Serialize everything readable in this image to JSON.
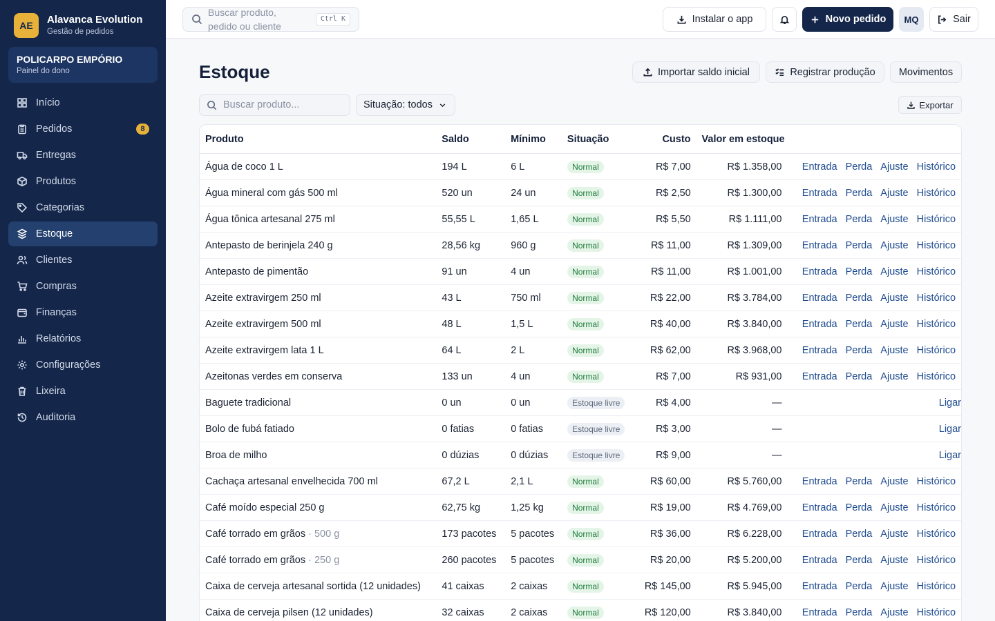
{
  "sidebar": {
    "brand": {
      "logo": "AE",
      "title": "Alavanca Evolution",
      "subtitle": "Gestão de pedidos"
    },
    "org": {
      "name": "POLICARPO EMPÓRIO",
      "role": "Painel do dono"
    },
    "items": [
      {
        "label": "Início",
        "icon": "grid-icon"
      },
      {
        "label": "Pedidos",
        "icon": "clipboard-icon",
        "badge": "8"
      },
      {
        "label": "Entregas",
        "icon": "truck-icon"
      },
      {
        "label": "Produtos",
        "icon": "box-icon"
      },
      {
        "label": "Categorias",
        "icon": "tag-icon"
      },
      {
        "label": "Estoque",
        "icon": "stack-icon",
        "active": true
      },
      {
        "label": "Clientes",
        "icon": "users-icon"
      },
      {
        "label": "Compras",
        "icon": "cart-icon"
      },
      {
        "label": "Finanças",
        "icon": "wallet-icon"
      },
      {
        "label": "Relatórios",
        "icon": "bar-chart-icon"
      },
      {
        "label": "Configurações",
        "icon": "gear-icon"
      },
      {
        "label": "Lixeira",
        "icon": "trash-icon"
      },
      {
        "label": "Auditoria",
        "icon": "history-icon"
      }
    ]
  },
  "topbar": {
    "search_placeholder": "Buscar produto, pedido ou cliente",
    "search_shortcut": "Ctrl K",
    "install_label": "Instalar o app",
    "new_order_label": "Novo pedido",
    "avatar": "MQ",
    "logout_label": "Sair"
  },
  "page": {
    "title": "Estoque",
    "actions": {
      "import": "Importar saldo inicial",
      "production": "Registrar produção",
      "movements": "Movimentos"
    },
    "filter_placeholder": "Buscar produto...",
    "filter_status": "Situação: todos",
    "export_label": "Exportar"
  },
  "table": {
    "headers": {
      "product": "Produto",
      "balance": "Saldo",
      "minimum": "Mínimo",
      "status": "Situação",
      "cost": "Custo",
      "value": "Valor em estoque"
    },
    "action_labels": {
      "entry": "Entrada",
      "loss": "Perda",
      "adjust": "Ajuste",
      "history": "Histórico",
      "link": "Ligar"
    },
    "rows": [
      {
        "product": "Água de coco 1 L",
        "variant": "",
        "balance": "194 L",
        "minimum": "6 L",
        "status": "Normal",
        "cost": "R$ 7,00",
        "value": "R$ 1.358,00"
      },
      {
        "product": "Água mineral com gás 500 ml",
        "variant": "",
        "balance": "520 un",
        "minimum": "24 un",
        "status": "Normal",
        "cost": "R$ 2,50",
        "value": "R$ 1.300,00"
      },
      {
        "product": "Água tônica artesanal 275 ml",
        "variant": "",
        "balance": "55,55 L",
        "minimum": "1,65 L",
        "status": "Normal",
        "cost": "R$ 5,50",
        "value": "R$ 1.111,00"
      },
      {
        "product": "Antepasto de berinjela 240 g",
        "variant": "",
        "balance": "28,56 kg",
        "minimum": "960 g",
        "status": "Normal",
        "cost": "R$ 11,00",
        "value": "R$ 1.309,00"
      },
      {
        "product": "Antepasto de pimentão",
        "variant": "",
        "balance": "91 un",
        "minimum": "4 un",
        "status": "Normal",
        "cost": "R$ 11,00",
        "value": "R$ 1.001,00"
      },
      {
        "product": "Azeite extravirgem 250 ml",
        "variant": "",
        "balance": "43 L",
        "minimum": "750 ml",
        "status": "Normal",
        "cost": "R$ 22,00",
        "value": "R$ 3.784,00"
      },
      {
        "product": "Azeite extravirgem 500 ml",
        "variant": "",
        "balance": "48 L",
        "minimum": "1,5 L",
        "status": "Normal",
        "cost": "R$ 40,00",
        "value": "R$ 3.840,00"
      },
      {
        "product": "Azeite extravirgem lata 1 L",
        "variant": "",
        "balance": "64 L",
        "minimum": "2 L",
        "status": "Normal",
        "cost": "R$ 62,00",
        "value": "R$ 3.968,00"
      },
      {
        "product": "Azeitonas verdes em conserva",
        "variant": "",
        "balance": "133 un",
        "minimum": "4 un",
        "status": "Normal",
        "cost": "R$ 7,00",
        "value": "R$ 931,00"
      },
      {
        "product": "Baguete tradicional",
        "variant": "",
        "balance": "0 un",
        "minimum": "0 un",
        "status": "Estoque livre",
        "cost": "R$ 4,00",
        "value": "—"
      },
      {
        "product": "Bolo de fubá fatiado",
        "variant": "",
        "balance": "0 fatias",
        "minimum": "0 fatias",
        "status": "Estoque livre",
        "cost": "R$ 3,00",
        "value": "—"
      },
      {
        "product": "Broa de milho",
        "variant": "",
        "balance": "0 dúzias",
        "minimum": "0 dúzias",
        "status": "Estoque livre",
        "cost": "R$ 9,00",
        "value": "—"
      },
      {
        "product": "Cachaça artesanal envelhecida 700 ml",
        "variant": "",
        "balance": "67,2 L",
        "minimum": "2,1 L",
        "status": "Normal",
        "cost": "R$ 60,00",
        "value": "R$ 5.760,00"
      },
      {
        "product": "Café moído especial 250 g",
        "variant": "",
        "balance": "62,75 kg",
        "minimum": "1,25 kg",
        "status": "Normal",
        "cost": "R$ 19,00",
        "value": "R$ 4.769,00"
      },
      {
        "product": "Café torrado em grãos",
        "variant": "500 g",
        "balance": "173 pacotes",
        "minimum": "5 pacotes",
        "status": "Normal",
        "cost": "R$ 36,00",
        "value": "R$ 6.228,00"
      },
      {
        "product": "Café torrado em grãos",
        "variant": "250 g",
        "balance": "260 pacotes",
        "minimum": "5 pacotes",
        "status": "Normal",
        "cost": "R$ 20,00",
        "value": "R$ 5.200,00"
      },
      {
        "product": "Caixa de cerveja artesanal sortida (12 unidades)",
        "variant": "",
        "balance": "41 caixas",
        "minimum": "2 caixas",
        "status": "Normal",
        "cost": "R$ 145,00",
        "value": "R$ 5.945,00"
      },
      {
        "product": "Caixa de cerveja pilsen (12 unidades)",
        "variant": "",
        "balance": "32 caixas",
        "minimum": "2 caixas",
        "status": "Normal",
        "cost": "R$ 120,00",
        "value": "R$ 3.840,00"
      }
    ]
  },
  "colors": {
    "sidebar": "#14264a",
    "accent": "#e8b23a",
    "primary": "#14264a",
    "link": "#1e4b8f",
    "normal_bg": "#e4f5e8",
    "normal_fg": "#1f7a3a"
  }
}
